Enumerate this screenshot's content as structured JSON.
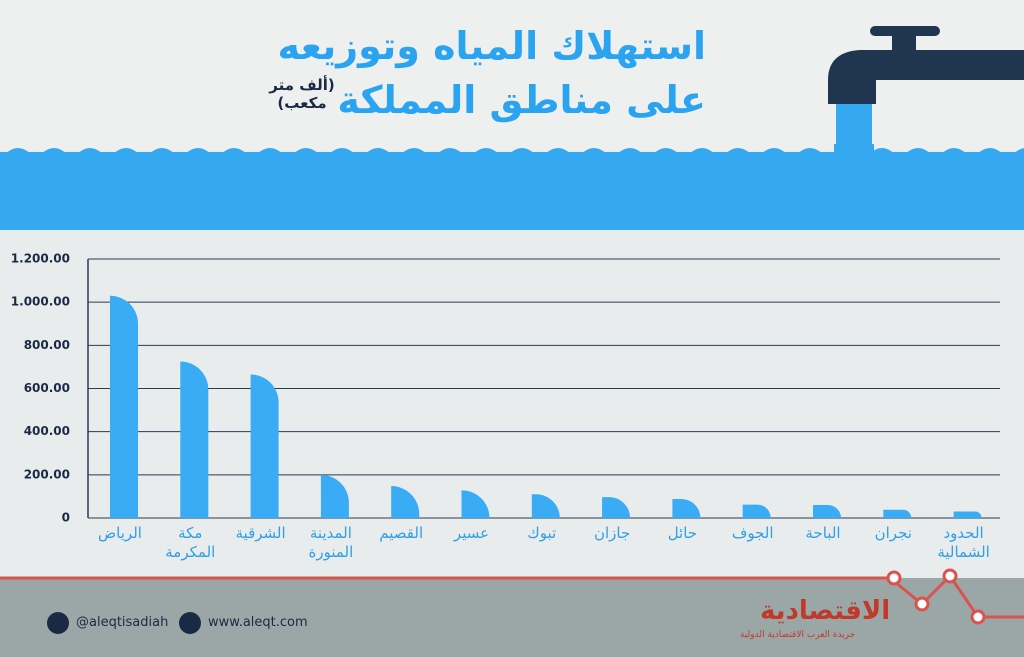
{
  "chart_data": {
    "type": "bar",
    "title": "استهلاك المياه وتوزيعه",
    "subtitle": "على مناطق المملكة",
    "unit": "(ألف متر مكعب)",
    "categories": [
      "الرياض",
      "مكة المكرمة",
      "الشرقية",
      "المدينة المنورة",
      "القصيم",
      "عسير",
      "تبوك",
      "جازان",
      "حائل",
      "الجوف",
      "الباحة",
      "نجران",
      "الحدود الشمالية"
    ],
    "values": [
      1030,
      725,
      665,
      200,
      148,
      128,
      110,
      97,
      88,
      62,
      60,
      38,
      30
    ],
    "color": "#3aabf5",
    "ylim": [
      0,
      1200
    ],
    "yticks": [
      0,
      {
        "value": 200,
        "label": "200.00"
      },
      {
        "value": 400,
        "label": "400.00"
      },
      {
        "value": 600,
        "label": "600.00"
      },
      {
        "value": 800,
        "label": "800.00"
      },
      {
        "value": 1000,
        "label": "1.000.00"
      },
      {
        "value": 1200,
        "label": "1.200.00"
      }
    ],
    "grid": true
  },
  "footer": {
    "twitter": "@aleqtisadiah",
    "website": "www.aleqt.com",
    "logo": "الاقتصادية",
    "tagline": "جريدة العرب الاقتصادية الدولية"
  }
}
